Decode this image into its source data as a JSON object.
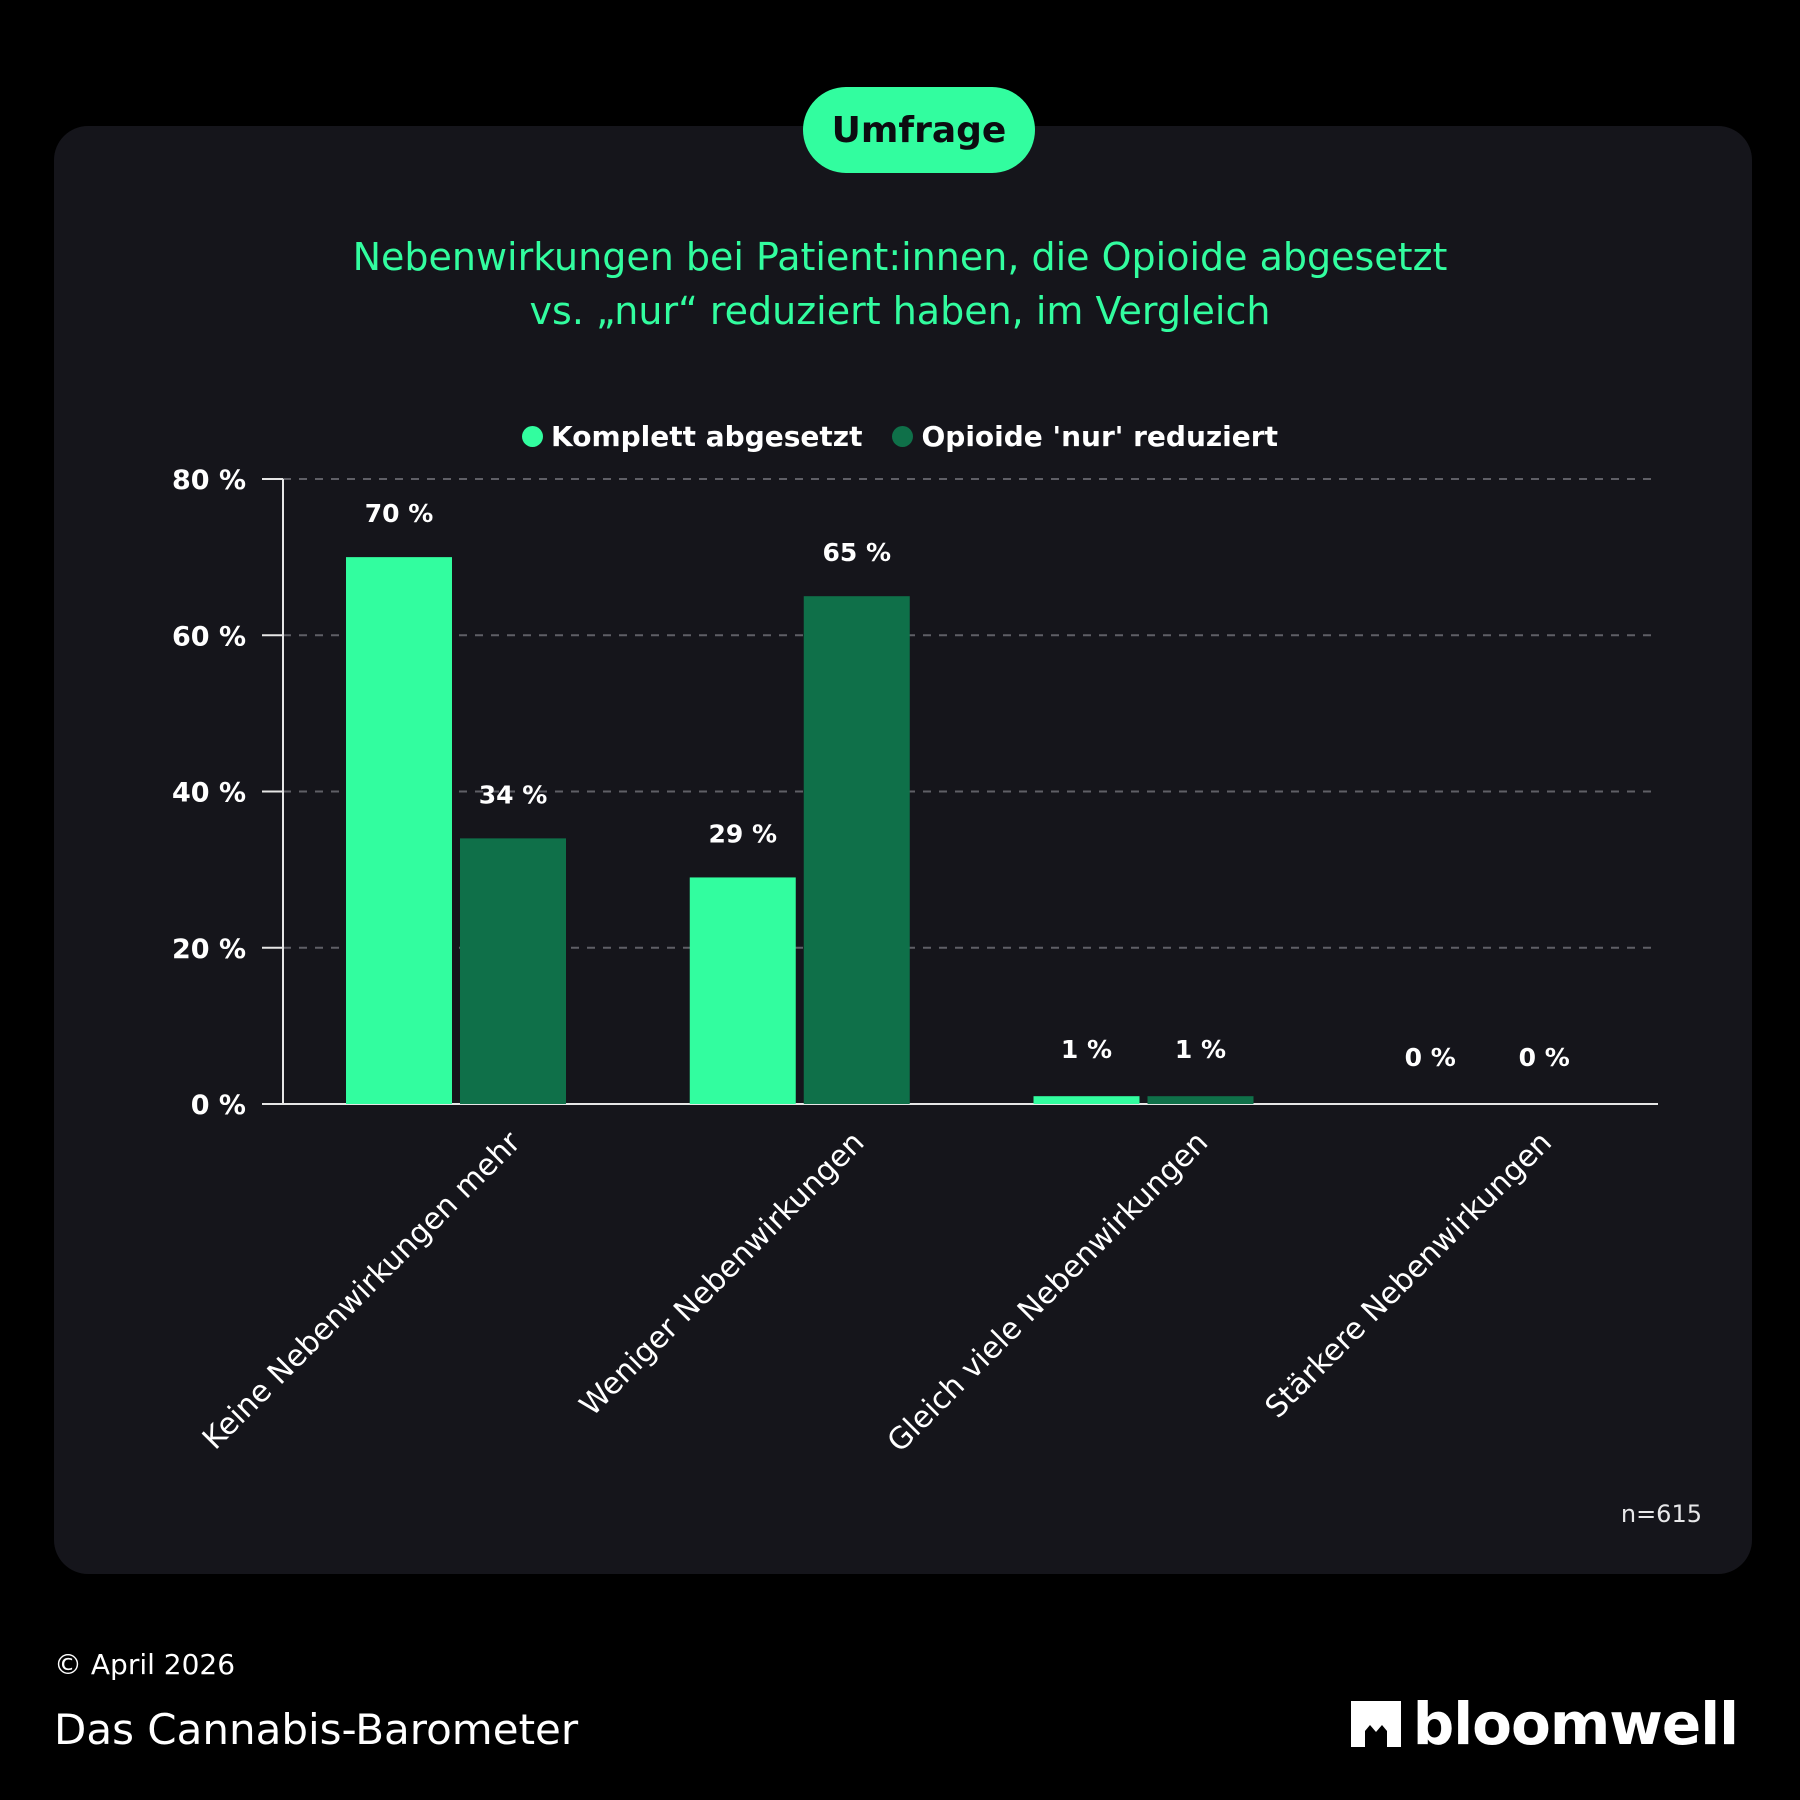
{
  "badge": "Umfrage",
  "title": {
    "line1": "Nebenwirkungen bei Patient:innen, die Opioide abgesetzt",
    "line2": "vs. „nur“ reduziert haben, im Vergleich"
  },
  "footer": {
    "n": "n=615",
    "date": "© April 2026",
    "brand": "Das Cannabis-Barometer",
    "logo": "bloomwell"
  },
  "colors": {
    "bright": "#32fd9f",
    "dark": "#0f7049",
    "background": "#15151b"
  },
  "chart_data": {
    "type": "bar",
    "title": "Nebenwirkungen bei Patient:innen, die Opioide abgesetzt vs. „nur“ reduziert haben, im Vergleich",
    "categories": [
      "Keine Nebenwirkungen mehr",
      "Weniger Nebenwirkungen",
      "Gleich viele Nebenwirkungen",
      "Stärkere Nebenwirkungen"
    ],
    "series": [
      {
        "name": "Komplett abgesetzt",
        "values": [
          70,
          29,
          1,
          0
        ],
        "labels": [
          "70 %",
          "29 %",
          "1 %",
          "0 %"
        ]
      },
      {
        "name": "Opioide 'nur' reduziert",
        "values": [
          34,
          65,
          1,
          0
        ],
        "labels": [
          "34 %",
          "65 %",
          "1 %",
          "0 %"
        ]
      }
    ],
    "yticks": [
      "0 %",
      "20 %",
      "40 %",
      "60 %",
      "80 %"
    ],
    "ylim": [
      0,
      80
    ],
    "grid": true,
    "legend": "top-center"
  }
}
